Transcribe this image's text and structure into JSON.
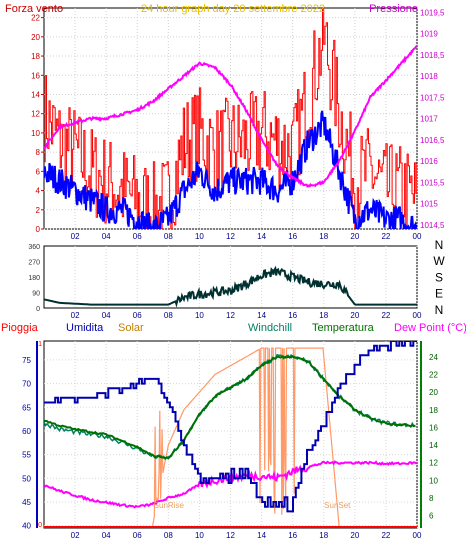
{
  "chart_data": [
    {
      "type": "line",
      "title": "24 hour graph day   20 settembre 2022",
      "left_axis_title": "Forza vento",
      "right_axis_title": "Pressione",
      "x_ticks": [
        "02",
        "04",
        "06",
        "08",
        "10",
        "12",
        "14",
        "16",
        "18",
        "20",
        "22",
        "00"
      ],
      "left_ticks": [
        "0",
        "2",
        "4",
        "6",
        "8",
        "10",
        "12",
        "14",
        "16",
        "18",
        "20",
        "22"
      ],
      "right_ticks": [
        "1014,5",
        "1015",
        "1015,5",
        "1016",
        "1016,5",
        "1017",
        "1017,5",
        "1018",
        "1018,5",
        "1019",
        "1019,5"
      ],
      "ylim_left": [
        0,
        23
      ],
      "ylim_right": [
        1014.4,
        1019.6
      ],
      "hours": [
        0,
        1,
        2,
        3,
        4,
        5,
        6,
        7,
        8,
        9,
        10,
        11,
        12,
        13,
        14,
        15,
        16,
        17,
        18,
        19,
        20,
        21,
        22,
        23,
        24
      ],
      "series": [
        {
          "legend": "Forza vento",
          "axis": "left",
          "color": "#ff0000",
          "style": "bars-raffica",
          "values": [
            12,
            9,
            8,
            6,
            5,
            4,
            3,
            2,
            3,
            9,
            10,
            8,
            9,
            9,
            10,
            9,
            8,
            14,
            20,
            12,
            5,
            6,
            4,
            4,
            3
          ]
        },
        {
          "legend": "Forza vento",
          "axis": "left",
          "color": "#0000ff",
          "style": "media",
          "values": [
            6,
            5,
            4,
            3,
            2,
            2,
            1,
            0,
            1,
            4,
            6,
            4,
            5,
            5,
            5,
            4,
            5,
            9,
            11,
            6,
            1,
            2,
            1,
            1,
            0
          ]
        },
        {
          "legend": "Pressione",
          "axis": "right",
          "color": "#ff00ff",
          "style": "line",
          "values": [
            1016.3,
            1016.8,
            1016.9,
            1017.0,
            1017.0,
            1017.1,
            1017.2,
            1017.4,
            1017.7,
            1018.0,
            1018.3,
            1018.2,
            1017.8,
            1017.2,
            1016.5,
            1015.9,
            1015.6,
            1015.4,
            1015.5,
            1016.0,
            1016.7,
            1017.5,
            1017.9,
            1018.3,
            1018.7
          ]
        }
      ]
    },
    {
      "type": "line",
      "title": "",
      "x_ticks": [
        "02",
        "04",
        "06",
        "08",
        "10",
        "12",
        "14",
        "16",
        "18",
        "20",
        "22",
        "00"
      ],
      "left_ticks": [
        "0",
        "90",
        "180",
        "270",
        "360"
      ],
      "right_labels": [
        "N",
        "W",
        "S",
        "E",
        "N"
      ],
      "ylim": [
        0,
        360
      ],
      "hours": [
        0,
        1,
        2,
        3,
        4,
        5,
        6,
        7,
        8,
        9,
        10,
        11,
        12,
        13,
        14,
        15,
        16,
        17,
        18,
        19,
        20,
        21,
        22,
        23,
        24
      ],
      "series": [
        {
          "legend": "Direzione vento",
          "color": "#003030",
          "values": [
            50,
            30,
            25,
            20,
            20,
            20,
            20,
            20,
            20,
            60,
            80,
            90,
            100,
            140,
            190,
            210,
            180,
            150,
            140,
            140,
            20,
            20,
            20,
            20,
            20
          ]
        }
      ]
    },
    {
      "type": "line",
      "title": "",
      "legend": [
        {
          "label": "Pioggia",
          "color": "#ff0000"
        },
        {
          "label": "Umidita",
          "color": "#0000b0"
        },
        {
          "label": "Solar",
          "color": "#c08000"
        },
        {
          "label": "Windchill",
          "color": "#008060"
        },
        {
          "label": "Temperatura",
          "color": "#007000"
        },
        {
          "label": "Dew Point (°C)",
          "color": "#ff00ff"
        }
      ],
      "x_ticks": [
        "02",
        "04",
        "06",
        "08",
        "10",
        "12",
        "14",
        "16",
        "18",
        "20",
        "22",
        "00"
      ],
      "humidity_ticks": [
        "40",
        "45",
        "50",
        "55",
        "60",
        "65",
        "70",
        "75"
      ],
      "temp_ticks": [
        "6",
        "8",
        "10",
        "12",
        "14",
        "16",
        "18",
        "20",
        "22",
        "24"
      ],
      "rain_ticks": [
        "0",
        "1"
      ],
      "ylim_humidity": [
        39.5,
        79
      ],
      "ylim_temp": [
        4.6,
        25.8
      ],
      "annotations": [
        "SunRise",
        "SunSet"
      ],
      "hours": [
        0,
        1,
        2,
        3,
        4,
        5,
        6,
        7,
        8,
        9,
        10,
        11,
        12,
        13,
        14,
        15,
        16,
        17,
        18,
        19,
        20,
        21,
        22,
        23,
        24
      ],
      "series": [
        {
          "legend": "Umidita",
          "axis": "humidity",
          "color": "#0000b0",
          "values": [
            66,
            67,
            66,
            67,
            68,
            69,
            70,
            71,
            66,
            57,
            50,
            49,
            50,
            52,
            45,
            43,
            45,
            55,
            62,
            69,
            74,
            77,
            78,
            79,
            79
          ]
        },
        {
          "legend": "Temperatura",
          "axis": "temp",
          "color": "#007000",
          "values": [
            16.8,
            16.2,
            15.8,
            15.5,
            15.2,
            14.5,
            13.8,
            12.8,
            12.5,
            14.5,
            17.5,
            19.5,
            20.5,
            21.5,
            23,
            24,
            24,
            23.5,
            21.5,
            19.5,
            18,
            17,
            16.5,
            16.3,
            16.2
          ]
        },
        {
          "legend": "Windchill",
          "axis": "temp",
          "color": "#008060",
          "values": [
            16.5,
            15.8,
            15.5,
            15.2,
            15,
            14.3,
            13.6,
            12.7,
            12.5,
            14.5,
            17.5,
            19.5,
            20.5,
            21.5,
            23,
            24,
            24,
            23.5,
            21.5,
            19.5,
            18,
            17,
            16.5,
            16.3,
            16.2
          ]
        },
        {
          "legend": "Dew Point (°C)",
          "axis": "temp",
          "color": "#ff00ff",
          "values": [
            9.5,
            8.8,
            8.3,
            7.8,
            7.5,
            7.2,
            7.0,
            7.3,
            8.0,
            8.5,
            9.5,
            10.0,
            10.3,
            10.5,
            10.5,
            10.3,
            11.0,
            11.5,
            12.0,
            12.0,
            12.0,
            12.0,
            11.9,
            11.9,
            12.0
          ]
        },
        {
          "legend": "Solar",
          "axis": "temp",
          "color": "#ff9966",
          "values": [
            null,
            null,
            null,
            null,
            null,
            null,
            null,
            5,
            14,
            18,
            20,
            22,
            23,
            24,
            25,
            25,
            25,
            25,
            25,
            null,
            null,
            null,
            null,
            null,
            null
          ]
        }
      ]
    }
  ]
}
